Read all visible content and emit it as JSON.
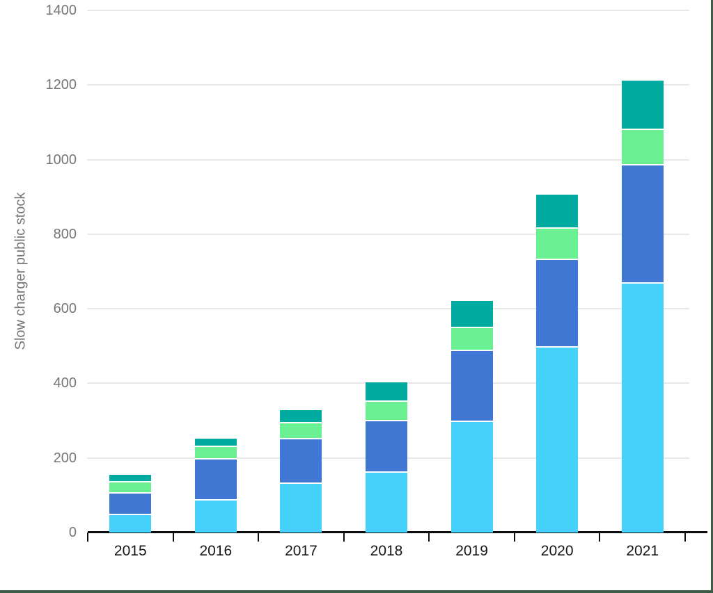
{
  "page": {
    "border_color": "#3e5c46",
    "background": "#ffffff"
  },
  "chart_data": {
    "type": "bar",
    "stacked": true,
    "title": "",
    "xlabel": "",
    "ylabel": "Slow charger public stock",
    "categories": [
      "2015",
      "2016",
      "2017",
      "2018",
      "2019",
      "2020",
      "2021"
    ],
    "series": [
      {
        "name": "light-blue-bottom-segment",
        "color": "#45d1fa",
        "values": [
          46,
          86,
          130,
          160,
          297,
          496,
          668
        ]
      },
      {
        "name": "blue-segment",
        "color": "#4077d2",
        "values": [
          59,
          110,
          120,
          138,
          190,
          235,
          316
        ]
      },
      {
        "name": "green-segment",
        "color": "#6aef92",
        "values": [
          30,
          34,
          42,
          52,
          62,
          83,
          96
        ]
      },
      {
        "name": "teal-top-segment",
        "color": "#01aba0",
        "values": [
          19,
          22,
          36,
          52,
          72,
          92,
          132
        ]
      }
    ],
    "ylim": [
      0,
      1400
    ],
    "yticks": [
      0,
      200,
      400,
      600,
      800,
      1000,
      1200,
      1400
    ],
    "grid": true,
    "gridline_color": "#e8e8e8",
    "axis_color": "#0d0d0d",
    "ytick_label_color": "#767676",
    "xtick_label_color": "#161616",
    "segment_separator_color": "#ffffff",
    "legend": "none"
  }
}
